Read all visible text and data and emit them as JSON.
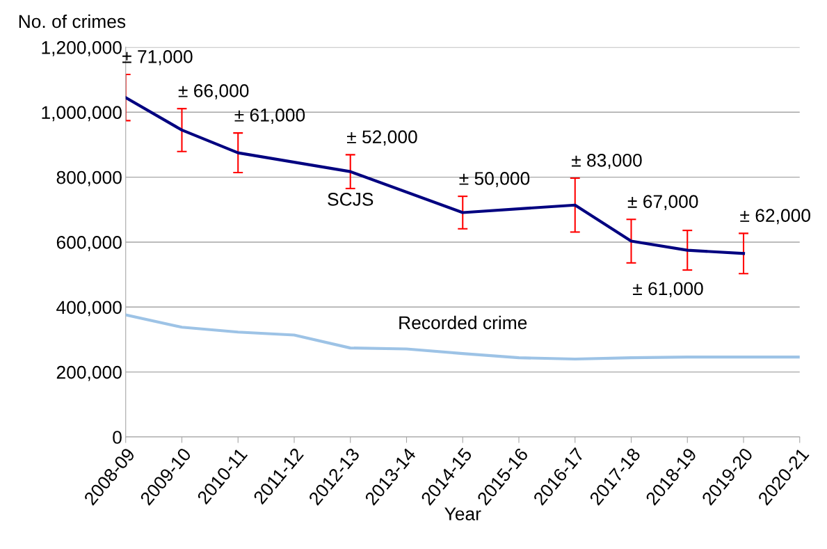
{
  "chart_data": {
    "type": "line",
    "xlabel": "Year",
    "ylabel": "No. of crimes",
    "categories": [
      "2008-09",
      "2009-10",
      "2010-11",
      "2011-12",
      "2012-13",
      "2013-14",
      "2014-15",
      "2015-16",
      "2016-17",
      "2017-18",
      "2018-19",
      "2019-20",
      "2020-21"
    ],
    "series": [
      {
        "name": "SCJS",
        "color": "#000080",
        "values": [
          1045000,
          945000,
          875000,
          null,
          817000,
          null,
          691000,
          null,
          714000,
          603000,
          575000,
          565000,
          null
        ],
        "errors": [
          71000,
          66000,
          61000,
          null,
          52000,
          null,
          50000,
          null,
          83000,
          67000,
          61000,
          62000,
          null
        ]
      },
      {
        "name": "Recorded crime",
        "color": "#9dc3e6",
        "values": [
          376000,
          338000,
          323000,
          314000,
          274000,
          271000,
          257000,
          244000,
          240000,
          244000,
          246000,
          246000,
          246000
        ]
      }
    ],
    "annotations": [
      {
        "text": "± 71,000",
        "x": "2008-09",
        "y": 1116000
      },
      {
        "text": "± 66,000",
        "x": "2009-10",
        "y": 1011000
      },
      {
        "text": "± 61,000",
        "x": "2010-11",
        "y": 936000
      },
      {
        "text": "± 52,000",
        "x": "2012-13",
        "y": 869000
      },
      {
        "text": "± 50,000",
        "x": "2014-15",
        "y": 741000
      },
      {
        "text": "± 83,000",
        "x": "2016-17",
        "y": 797000
      },
      {
        "text": "± 67,000",
        "x": "2017-18",
        "y": 670000
      },
      {
        "text": "± 61,000",
        "x": "2018-19",
        "y": 514000
      },
      {
        "text": "± 62,000",
        "x": "2019-20",
        "y": 627000
      }
    ],
    "ylim": [
      0,
      1200000
    ],
    "yticks": [
      {
        "value": 0,
        "label": "0"
      },
      {
        "value": 200000,
        "label": "200,000"
      },
      {
        "value": 400000,
        "label": "400,000"
      },
      {
        "value": 600000,
        "label": "600,000"
      },
      {
        "value": 800000,
        "label": "800,000"
      },
      {
        "value": 1000000,
        "label": "1,000,000"
      },
      {
        "value": 1200000,
        "label": "1,200,000"
      }
    ],
    "grid": "y",
    "legend": false,
    "marker": "none",
    "line_style": "solid"
  }
}
